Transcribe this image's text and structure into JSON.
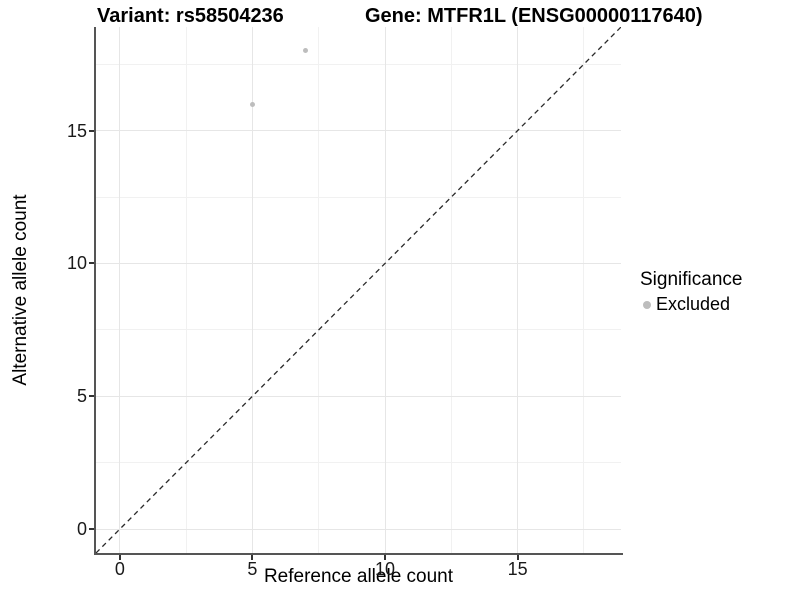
{
  "figure": {
    "variant_title": "Variant: rs58504236",
    "gene_title": "Gene: MTFR1L (ENSG00000117640)"
  },
  "axes": {
    "x_title": "Reference allele count",
    "y_title": "Alternative allele count"
  },
  "legend": {
    "title": "Significance",
    "items": [
      {
        "label": "Excluded",
        "marker": "dot-icon",
        "color": "#bdbdbd"
      }
    ]
  },
  "chart_data": {
    "type": "scatter",
    "title": "Variant: rs58504236 | Gene: MTFR1L (ENSG00000117640)",
    "xlabel": "Reference allele count",
    "ylabel": "Alternative allele count",
    "series": [
      {
        "name": "Excluded",
        "color": "#bdbdbd",
        "points": [
          {
            "x": 5,
            "y": 16
          },
          {
            "x": 7,
            "y": 18
          }
        ]
      }
    ],
    "xlim": [
      -0.9,
      18.9
    ],
    "ylim": [
      -0.9,
      18.9
    ],
    "x_major_ticks": [
      0,
      5,
      10,
      15
    ],
    "y_major_ticks": [
      0,
      5,
      10,
      15
    ],
    "x_minor_ticks": [
      2.5,
      7.5,
      12.5,
      17.5
    ],
    "y_minor_ticks": [
      2.5,
      7.5,
      12.5,
      17.5
    ],
    "grid": "major+minor",
    "legend_position": "right",
    "identity_line": {
      "equation": "y = x",
      "style": "dashed",
      "color": "#2a2a2a"
    }
  },
  "colors": {
    "background": "#ffffff",
    "grid_major": "#e6e6e6",
    "grid_minor": "#f1f1f1",
    "axis_line": "#555555",
    "tick_mark": "#333333",
    "tick_text": "#1a1a1a",
    "point": "#bdbdbd"
  }
}
